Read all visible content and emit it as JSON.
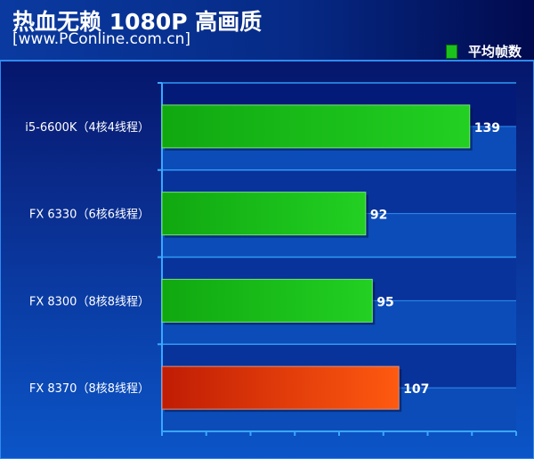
{
  "chart_data": {
    "type": "bar",
    "orientation": "horizontal",
    "title": "热血无赖 1080P 高画质",
    "subtitle": "[www.PConline.com.cn]",
    "categories": [
      "i5-6600K（4核4线程）",
      "FX 6330（6核6线程）",
      "FX 8300（8核8线程）",
      "FX 8370（8核8线程）"
    ],
    "series": [
      {
        "name": "平均帧数",
        "values": [
          139,
          92,
          95,
          107
        ]
      }
    ],
    "bar_colors": [
      "#1cc21c",
      "#1cc21c",
      "#1cc21c",
      "#e8400a"
    ],
    "xlim": [
      0,
      160
    ],
    "x_tick_step": 20,
    "x_tick_labels_shown": false,
    "legend_position": "top-right",
    "grid": false,
    "xlabel": "",
    "ylabel": ""
  }
}
